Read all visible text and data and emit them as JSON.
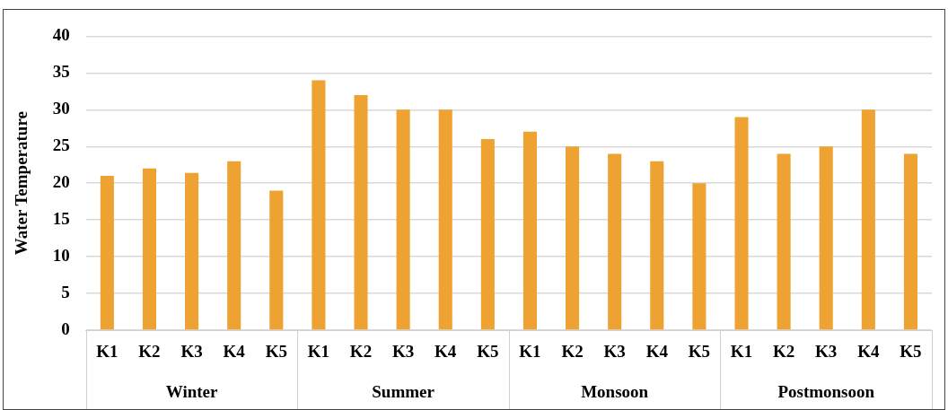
{
  "chart_data": {
    "type": "bar",
    "ylabel": "Water Temperature",
    "categories": [
      "K1",
      "K2",
      "K3",
      "K4",
      "K5",
      "K1",
      "K2",
      "K3",
      "K4",
      "K5",
      "K1",
      "K2",
      "K3",
      "K4",
      "K5",
      "K1",
      "K2",
      "K3",
      "K4",
      "K5"
    ],
    "values": [
      21,
      22,
      21.4,
      23,
      19,
      34,
      32,
      30,
      30,
      26,
      27,
      25,
      24,
      23,
      20,
      29,
      24,
      25,
      30,
      24
    ],
    "color": "#eea232",
    "annotations": [
      "Winter",
      "Summer",
      "Monsoon",
      "Postmonsoon"
    ],
    "ylim": [
      0,
      40
    ],
    "yticks": [
      0,
      5,
      10,
      15,
      20,
      25,
      30,
      35,
      40
    ],
    "grid": "y"
  }
}
